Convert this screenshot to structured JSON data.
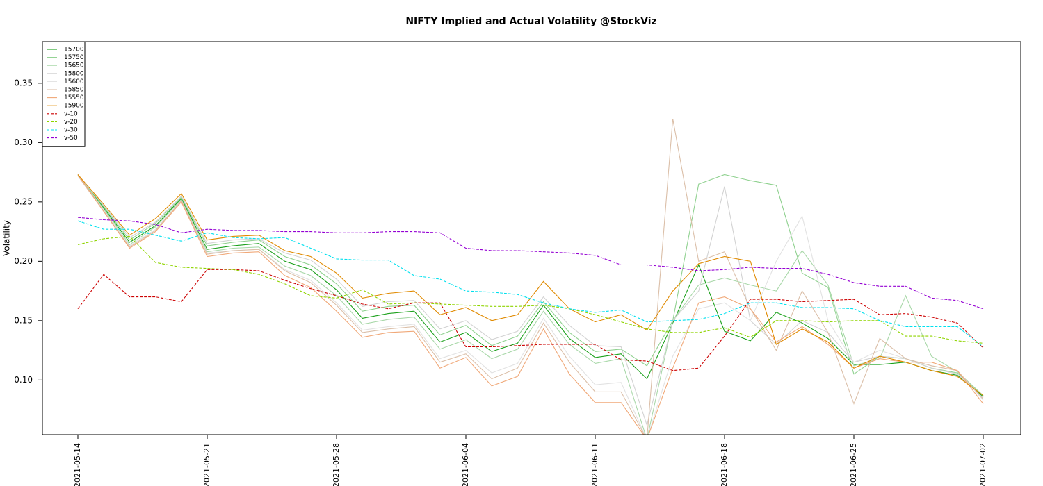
{
  "chart_data": {
    "type": "line",
    "title": "NIFTY Implied and Actual Volatility @StockViz",
    "y_label": "Volatility",
    "categories": [
      "2021-05-14",
      null,
      null,
      null,
      null,
      "2021-05-21",
      null,
      null,
      null,
      null,
      "2021-05-28",
      null,
      null,
      null,
      null,
      "2021-06-04",
      null,
      null,
      null,
      null,
      "2021-06-11",
      null,
      null,
      null,
      null,
      "2021-06-18",
      null,
      null,
      null,
      null,
      "2021-06-25",
      null,
      null,
      null,
      null,
      "2021-07-02"
    ],
    "ylim": [
      0.054,
      0.385
    ],
    "yticks": [
      {
        "value": 0.1,
        "label": "0.10"
      },
      0.15,
      {
        "value": 0.2,
        "label": "0.20"
      },
      0.25,
      {
        "value": 0.3,
        "label": "0.30"
      },
      0.35
    ],
    "legend": "top-left",
    "series": [
      {
        "name": "15700",
        "color": "#1aa01a",
        "linestyle": "solid",
        "values": [
          0.273,
          0.245,
          0.216,
          0.23,
          0.253,
          0.21,
          0.213,
          0.215,
          0.2,
          0.193,
          0.176,
          0.152,
          0.156,
          0.158,
          0.132,
          0.14,
          0.124,
          0.131,
          0.163,
          0.135,
          0.119,
          0.122,
          0.101,
          0.148,
          0.197,
          0.141,
          0.133,
          0.157,
          0.148,
          0.135,
          0.113,
          0.113,
          0.115,
          0.108,
          0.104,
          0.086
        ]
      },
      {
        "name": "15750",
        "color": "#8fd18f",
        "linestyle": "solid",
        "values": [
          0.273,
          0.246,
          0.218,
          0.232,
          0.254,
          0.213,
          0.216,
          0.218,
          0.204,
          0.197,
          0.181,
          0.158,
          0.162,
          0.163,
          0.138,
          0.146,
          0.129,
          0.137,
          0.166,
          0.14,
          0.124,
          0.126,
          0.112,
          0.15,
          0.265,
          0.273,
          0.268,
          0.264,
          0.19,
          0.178,
          0.105,
          0.12,
          0.118,
          0.11,
          0.106,
          0.087
        ]
      },
      {
        "name": "15650",
        "color": "#a9d8a9",
        "linestyle": "solid",
        "values": [
          0.273,
          0.244,
          0.214,
          0.229,
          0.252,
          0.208,
          0.211,
          0.212,
          0.196,
          0.188,
          0.171,
          0.147,
          0.151,
          0.153,
          0.126,
          0.134,
          0.118,
          0.126,
          0.158,
          0.13,
          0.114,
          0.118,
          0.05,
          0.15,
          0.18,
          0.186,
          0.18,
          0.175,
          0.209,
          0.18,
          0.112,
          0.118,
          0.171,
          0.12,
          0.107,
          0.087
        ]
      },
      {
        "name": "15800",
        "color": "#d2d2d2",
        "linestyle": "solid",
        "values": [
          0.273,
          0.247,
          0.22,
          0.233,
          0.255,
          0.215,
          0.218,
          0.219,
          0.207,
          0.201,
          0.185,
          0.162,
          0.166,
          0.167,
          0.143,
          0.15,
          0.134,
          0.141,
          0.17,
          0.146,
          0.129,
          0.128,
          0.062,
          0.15,
          0.175,
          0.263,
          0.15,
          0.13,
          0.15,
          0.14,
          0.115,
          0.12,
          0.118,
          0.11,
          0.105,
          0.085
        ]
      },
      {
        "name": "15600",
        "color": "#e2e2e2",
        "linestyle": "solid",
        "values": [
          0.272,
          0.243,
          0.213,
          0.227,
          0.251,
          0.207,
          0.209,
          0.21,
          0.193,
          0.184,
          0.165,
          0.142,
          0.145,
          0.147,
          0.118,
          0.125,
          0.106,
          0.114,
          0.152,
          0.12,
          0.096,
          0.098,
          0.05,
          0.12,
          0.16,
          0.165,
          0.15,
          0.2,
          0.238,
          0.15,
          0.115,
          0.125,
          0.118,
          0.112,
          0.108,
          0.083
        ]
      },
      {
        "name": "15850",
        "color": "#dbbfa8",
        "linestyle": "solid",
        "values": [
          0.272,
          0.242,
          0.212,
          0.226,
          0.251,
          0.206,
          0.209,
          0.21,
          0.192,
          0.182,
          0.163,
          0.14,
          0.143,
          0.145,
          0.115,
          0.122,
          0.101,
          0.11,
          0.148,
          0.115,
          0.09,
          0.09,
          0.05,
          0.32,
          0.2,
          0.208,
          0.16,
          0.125,
          0.175,
          0.14,
          0.08,
          0.135,
          0.118,
          0.112,
          0.108,
          0.084
        ]
      },
      {
        "name": "15550",
        "color": "#f0a878",
        "linestyle": "solid",
        "values": [
          0.273,
          0.242,
          0.211,
          0.225,
          0.25,
          0.204,
          0.207,
          0.208,
          0.188,
          0.178,
          0.158,
          0.136,
          0.14,
          0.141,
          0.11,
          0.119,
          0.095,
          0.103,
          0.143,
          0.105,
          0.081,
          0.081,
          0.05,
          0.11,
          0.165,
          0.17,
          0.16,
          0.132,
          0.145,
          0.13,
          0.11,
          0.118,
          0.115,
          0.115,
          0.108,
          0.08
        ]
      },
      {
        "name": "15900",
        "color": "#e08a00",
        "linestyle": "solid",
        "values": [
          0.273,
          0.248,
          0.222,
          0.236,
          0.257,
          0.218,
          0.221,
          0.222,
          0.209,
          0.204,
          0.19,
          0.169,
          0.173,
          0.175,
          0.155,
          0.161,
          0.15,
          0.155,
          0.183,
          0.16,
          0.149,
          0.155,
          0.142,
          0.175,
          0.198,
          0.204,
          0.2,
          0.13,
          0.143,
          0.132,
          0.11,
          0.12,
          0.115,
          0.108,
          0.103,
          0.087
        ]
      },
      {
        "name": "v-10",
        "color": "#cc0000",
        "linestyle": "dashed",
        "values": [
          0.16,
          0.189,
          0.17,
          0.17,
          0.166,
          0.193,
          0.193,
          0.192,
          0.184,
          0.177,
          0.171,
          0.164,
          0.16,
          0.165,
          0.165,
          0.128,
          0.128,
          0.129,
          0.13,
          0.13,
          0.13,
          0.117,
          0.116,
          0.108,
          0.11,
          0.137,
          0.168,
          0.168,
          0.166,
          0.167,
          0.168,
          0.155,
          0.156,
          0.153,
          0.148,
          0.127
        ]
      },
      {
        "name": "v-20",
        "color": "#8fd400",
        "linestyle": "dashed",
        "values": [
          0.214,
          0.219,
          0.221,
          0.199,
          0.195,
          0.194,
          0.193,
          0.189,
          0.181,
          0.171,
          0.169,
          0.176,
          0.164,
          0.165,
          0.164,
          0.163,
          0.162,
          0.162,
          0.163,
          0.16,
          0.155,
          0.149,
          0.143,
          0.14,
          0.14,
          0.144,
          0.136,
          0.15,
          0.15,
          0.149,
          0.15,
          0.15,
          0.137,
          0.137,
          0.133,
          0.131
        ]
      },
      {
        "name": "v-30",
        "color": "#00e0ee",
        "linestyle": "dashed",
        "values": [
          0.234,
          0.227,
          0.227,
          0.222,
          0.217,
          0.224,
          0.22,
          0.219,
          0.22,
          0.211,
          0.202,
          0.201,
          0.201,
          0.188,
          0.185,
          0.175,
          0.174,
          0.172,
          0.165,
          0.16,
          0.157,
          0.159,
          0.149,
          0.15,
          0.151,
          0.156,
          0.165,
          0.165,
          0.161,
          0.161,
          0.16,
          0.15,
          0.145,
          0.145,
          0.145,
          0.128
        ]
      },
      {
        "name": "v-50",
        "color": "#9400d3",
        "linestyle": "dashed",
        "values": [
          0.237,
          0.235,
          0.234,
          0.231,
          0.224,
          0.227,
          0.226,
          0.226,
          0.225,
          0.225,
          0.224,
          0.224,
          0.225,
          0.225,
          0.224,
          0.211,
          0.209,
          0.209,
          0.208,
          0.207,
          0.205,
          0.197,
          0.197,
          0.195,
          0.192,
          0.193,
          0.195,
          0.194,
          0.194,
          0.189,
          0.182,
          0.179,
          0.179,
          0.169,
          0.167,
          0.16
        ]
      }
    ]
  }
}
